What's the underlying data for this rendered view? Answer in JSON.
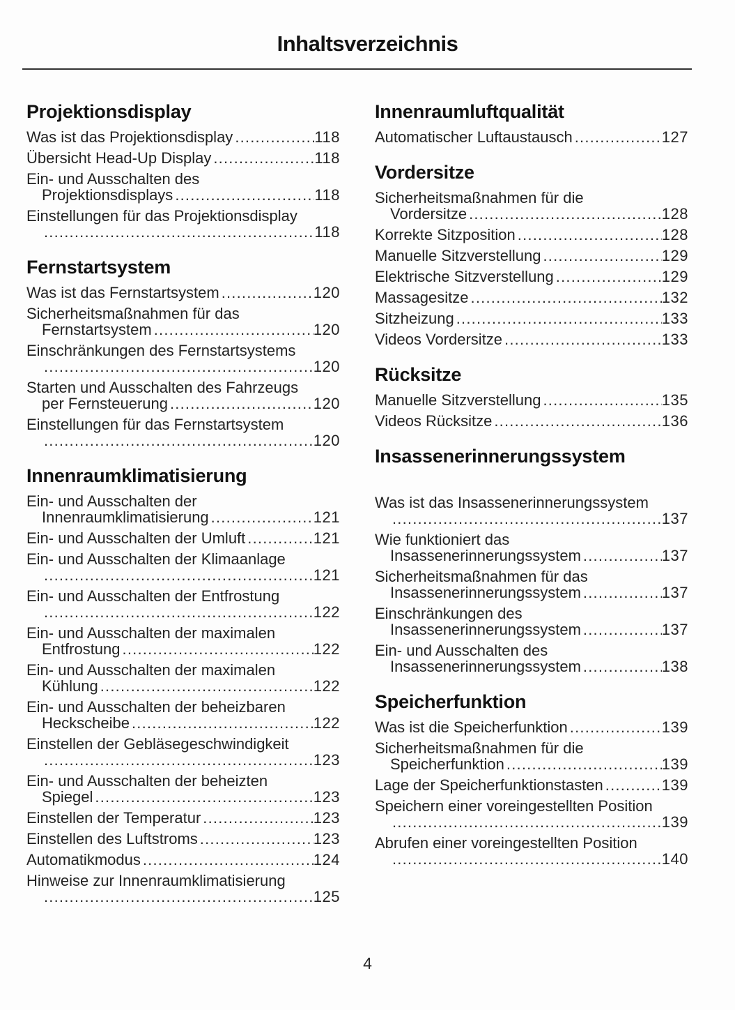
{
  "title": "Inhaltsverzeichnis",
  "page_number": "4",
  "colors": {
    "text": "#232323",
    "heading": "#121212",
    "rule": "#333333",
    "background": "#fdfdfd"
  },
  "columns": {
    "left": [
      {
        "heading": "Projektionsdisplay",
        "entries": [
          {
            "lines": [
              "Was ist das Projektionsdisplay"
            ],
            "page": "118"
          },
          {
            "lines": [
              "Übersicht Head-Up Display"
            ],
            "page": "118"
          },
          {
            "lines": [
              "Ein- und Ausschalten des",
              "Projektionsdisplays "
            ],
            "page": "118"
          },
          {
            "lines": [
              "Einstellungen für das Projektionsdisplay",
              ""
            ],
            "page": "118"
          }
        ]
      },
      {
        "heading": "Fernstartsystem",
        "entries": [
          {
            "lines": [
              "Was ist das Fernstartsystem"
            ],
            "page": "120"
          },
          {
            "lines": [
              "Sicherheitsmaßnahmen für das",
              "Fernstartsystem "
            ],
            "page": "120"
          },
          {
            "lines": [
              "Einschränkungen des Fernstartsystems",
              ""
            ],
            "page": "120"
          },
          {
            "lines": [
              "Starten und Ausschalten des Fahrzeugs",
              "per Fernsteuerung"
            ],
            "page": "120"
          },
          {
            "lines": [
              "Einstellungen für das Fernstartsystem",
              ""
            ],
            "page": "120"
          }
        ]
      },
      {
        "heading": "Innenraumklimatisierung",
        "entries": [
          {
            "lines": [
              "Ein- und Ausschalten der",
              "Innenraumklimatisierung"
            ],
            "page": "121"
          },
          {
            "lines": [
              "Ein- und Ausschalten der Umluft"
            ],
            "page": "121"
          },
          {
            "lines": [
              "Ein- und Ausschalten der Klimaanlage",
              ""
            ],
            "page": "121"
          },
          {
            "lines": [
              "Ein- und Ausschalten der Entfrostung",
              ""
            ],
            "page": "122"
          },
          {
            "lines": [
              "Ein- und Ausschalten der maximalen",
              "Entfrostung "
            ],
            "page": "122"
          },
          {
            "lines": [
              "Ein- und Ausschalten der maximalen",
              "Kühlung"
            ],
            "page": "122"
          },
          {
            "lines": [
              "Ein- und Ausschalten der beheizbaren",
              "Heckscheibe "
            ],
            "page": "122"
          },
          {
            "lines": [
              "Einstellen der Gebläsegeschwindigkeit",
              ""
            ],
            "page": "123"
          },
          {
            "lines": [
              "Ein- und Ausschalten der beheizten",
              "Spiegel "
            ],
            "page": "123"
          },
          {
            "lines": [
              "Einstellen der Temperatur"
            ],
            "page": "123"
          },
          {
            "lines": [
              "Einstellen des Luftstroms"
            ],
            "page": "123"
          },
          {
            "lines": [
              "Automatikmodus"
            ],
            "page": "124"
          },
          {
            "lines": [
              "Hinweise zur Innenraumklimatisierung",
              ""
            ],
            "page": "125"
          }
        ]
      }
    ],
    "right": [
      {
        "heading": "Innenraumluftqualität",
        "entries": [
          {
            "lines": [
              "Automatischer Luftaustausch"
            ],
            "page": "127"
          }
        ]
      },
      {
        "heading": "Vordersitze",
        "entries": [
          {
            "lines": [
              "Sicherheitsmaßnahmen für die",
              "Vordersitze "
            ],
            "page": "128"
          },
          {
            "lines": [
              "Korrekte Sitzposition"
            ],
            "page": "128"
          },
          {
            "lines": [
              "Manuelle Sitzverstellung"
            ],
            "page": "129"
          },
          {
            "lines": [
              "Elektrische Sitzverstellung"
            ],
            "page": "129"
          },
          {
            "lines": [
              "Massagesitze"
            ],
            "page": "132"
          },
          {
            "lines": [
              "Sitzheizung"
            ],
            "page": "133"
          },
          {
            "lines": [
              "Videos Vordersitze"
            ],
            "page": "133"
          }
        ]
      },
      {
        "heading": "Rücksitze",
        "entries": [
          {
            "lines": [
              "Manuelle Sitzverstellung"
            ],
            "page": "135"
          },
          {
            "lines": [
              "Videos Rücksitze"
            ],
            "page": "136"
          }
        ]
      },
      {
        "heading": "Insassenerinnerungssystem",
        "gap_after_heading": true,
        "entries": [
          {
            "lines": [
              "Was ist das Insassenerinnerungssystem",
              ""
            ],
            "page": "137"
          },
          {
            "lines": [
              "Wie funktioniert das",
              "Insassenerinnerungssystem "
            ],
            "page": "137"
          },
          {
            "lines": [
              "Sicherheitsmaßnahmen für das",
              "Insassenerinnerungssystem "
            ],
            "page": "137"
          },
          {
            "lines": [
              "Einschränkungen des",
              "Insassenerinnerungssystem "
            ],
            "page": "137"
          },
          {
            "lines": [
              "Ein- und Ausschalten des",
              "Insassenerinnerungssystem "
            ],
            "page": "138"
          }
        ]
      },
      {
        "heading": "Speicherfunktion",
        "entries": [
          {
            "lines": [
              "Was ist die Speicherfunktion"
            ],
            "page": "139"
          },
          {
            "lines": [
              "Sicherheitsmaßnahmen für die",
              "Speicherfunktion "
            ],
            "page": "139"
          },
          {
            "lines": [
              "Lage der Speicherfunktionstasten"
            ],
            "page": "139"
          },
          {
            "lines": [
              "Speichern einer voreingestellten Position",
              ""
            ],
            "page": "139"
          },
          {
            "lines": [
              "Abrufen einer voreingestellten Position",
              ""
            ],
            "page": "140"
          }
        ]
      }
    ]
  }
}
